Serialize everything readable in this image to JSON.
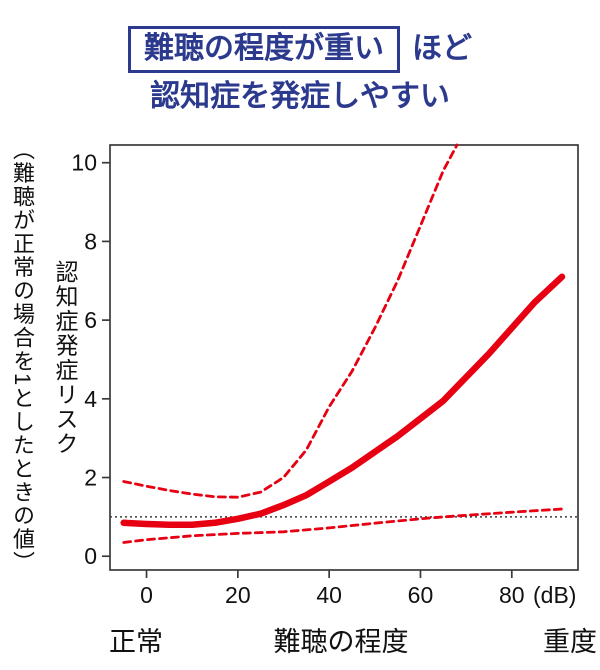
{
  "title": {
    "boxed_text": "難聴の程度が重い",
    "suffix": "ほど",
    "line2": "認知症を発症しやすい",
    "color": "#2c3a8e"
  },
  "chart_data": {
    "type": "line",
    "xlabel": "難聴の程度",
    "x_unit_label": "(dB)",
    "x_left_label": "正常",
    "x_right_label": "重度",
    "ylabel": "認知症発症リスク",
    "ylabel_note": "（難聴が正常の場合を1としたときの値）",
    "x_ticks": [
      0,
      20,
      40,
      60,
      80
    ],
    "y_ticks": [
      0,
      2,
      4,
      6,
      8,
      10
    ],
    "x_plot_range": [
      -8,
      94.5
    ],
    "y_plot_range": [
      -0.35,
      10.45
    ],
    "grid": false,
    "legend": false,
    "reference_line_y": 1,
    "accent_red": "#e60012",
    "axis_color": "#3a3a3a",
    "reference_line_color": "#3c3c3c",
    "series": [
      {
        "key": "risk-estimate",
        "style": "solid",
        "color": "#e60012",
        "width": 6.5,
        "points": [
          [
            -5,
            0.85
          ],
          [
            0,
            0.82
          ],
          [
            5,
            0.8
          ],
          [
            10,
            0.8
          ],
          [
            15,
            0.85
          ],
          [
            20,
            0.95
          ],
          [
            25,
            1.08
          ],
          [
            30,
            1.3
          ],
          [
            35,
            1.55
          ],
          [
            40,
            1.9
          ],
          [
            45,
            2.25
          ],
          [
            50,
            2.65
          ],
          [
            55,
            3.05
          ],
          [
            60,
            3.5
          ],
          [
            65,
            3.95
          ],
          [
            70,
            4.55
          ],
          [
            75,
            5.15
          ],
          [
            80,
            5.8
          ],
          [
            85,
            6.45
          ],
          [
            91,
            7.1
          ]
        ]
      },
      {
        "key": "upper-confidence",
        "style": "dashed",
        "color": "#e60012",
        "width": 2.8,
        "points": [
          [
            -5,
            1.9
          ],
          [
            0,
            1.78
          ],
          [
            5,
            1.67
          ],
          [
            10,
            1.58
          ],
          [
            15,
            1.51
          ],
          [
            20,
            1.5
          ],
          [
            25,
            1.63
          ],
          [
            30,
            2.0
          ],
          [
            35,
            2.7
          ],
          [
            40,
            3.8
          ],
          [
            45,
            4.7
          ],
          [
            50,
            5.8
          ],
          [
            55,
            7.0
          ],
          [
            60,
            8.4
          ],
          [
            65,
            9.8
          ],
          [
            68,
            10.45
          ]
        ]
      },
      {
        "key": "lower-confidence",
        "style": "dashed",
        "color": "#e60012",
        "width": 2.8,
        "points": [
          [
            -5,
            0.35
          ],
          [
            0,
            0.42
          ],
          [
            10,
            0.52
          ],
          [
            20,
            0.58
          ],
          [
            30,
            0.62
          ],
          [
            40,
            0.72
          ],
          [
            50,
            0.84
          ],
          [
            60,
            0.95
          ],
          [
            65,
            1.0
          ],
          [
            70,
            1.04
          ],
          [
            80,
            1.12
          ],
          [
            91,
            1.2
          ]
        ]
      }
    ]
  }
}
